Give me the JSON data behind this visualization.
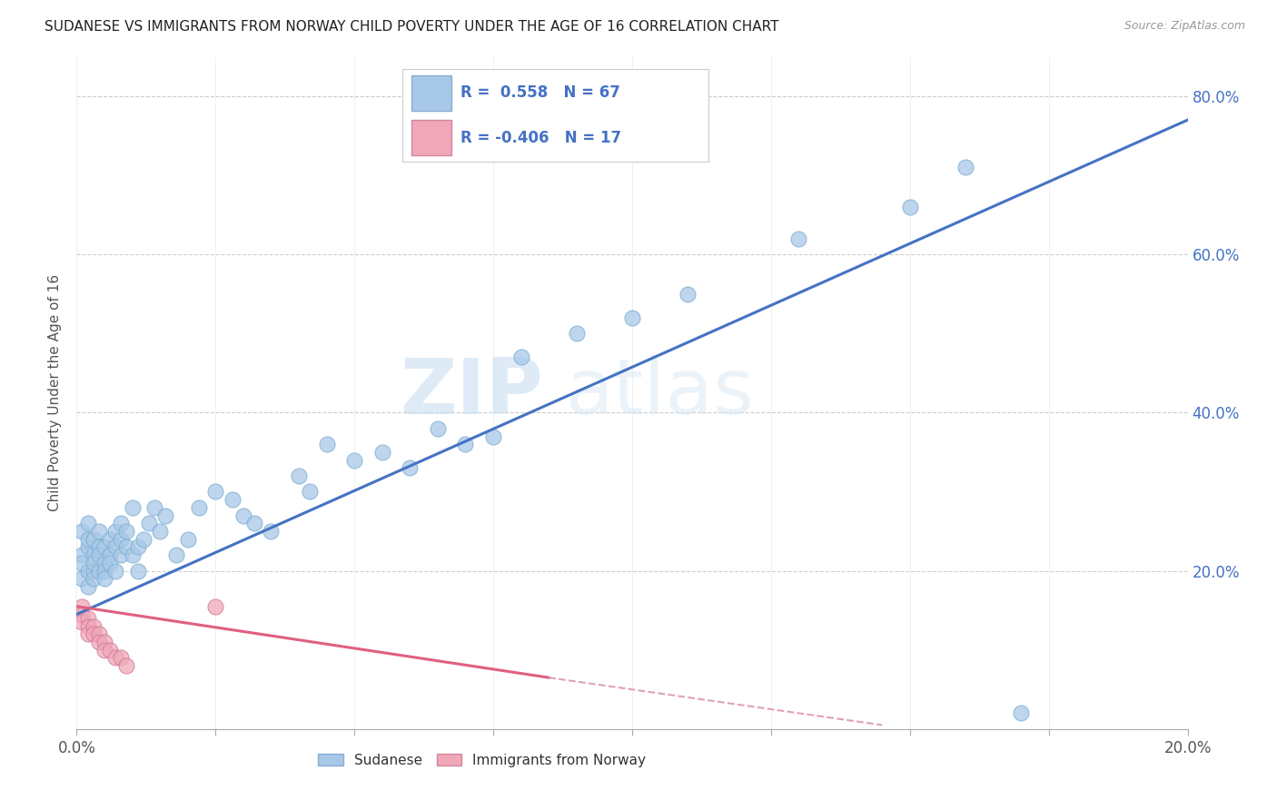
{
  "title": "SUDANESE VS IMMIGRANTS FROM NORWAY CHILD POVERTY UNDER THE AGE OF 16 CORRELATION CHART",
  "source": "Source: ZipAtlas.com",
  "ylabel": "Child Poverty Under the Age of 16",
  "xlim": [
    0.0,
    0.2
  ],
  "ylim": [
    0.0,
    0.85
  ],
  "ytick_vals": [
    0.0,
    0.2,
    0.4,
    0.6,
    0.8
  ],
  "ytick_labels": [
    "",
    "20.0%",
    "40.0%",
    "60.0%",
    "80.0%"
  ],
  "xtick_vals": [
    0.0,
    0.025,
    0.05,
    0.075,
    0.1,
    0.125,
    0.15,
    0.175,
    0.2
  ],
  "xtick_show": [
    0.0,
    0.2
  ],
  "watermark_line1": "ZIP",
  "watermark_line2": "atlas",
  "series1_color": "#a8c8e8",
  "series2_color": "#f0a8b8",
  "line1_color": "#4472c4",
  "line2_color": "#e06080",
  "line2_dashed_color": "#e0a0b8",
  "sudanese_x": [
    0.001,
    0.001,
    0.001,
    0.001,
    0.002,
    0.002,
    0.002,
    0.002,
    0.002,
    0.003,
    0.003,
    0.003,
    0.003,
    0.003,
    0.004,
    0.004,
    0.004,
    0.004,
    0.005,
    0.005,
    0.005,
    0.005,
    0.006,
    0.006,
    0.006,
    0.007,
    0.007,
    0.007,
    0.008,
    0.008,
    0.008,
    0.009,
    0.009,
    0.01,
    0.01,
    0.011,
    0.011,
    0.012,
    0.013,
    0.014,
    0.015,
    0.016,
    0.018,
    0.02,
    0.022,
    0.025,
    0.028,
    0.03,
    0.032,
    0.035,
    0.04,
    0.042,
    0.045,
    0.05,
    0.055,
    0.06,
    0.065,
    0.07,
    0.075,
    0.08,
    0.09,
    0.1,
    0.11,
    0.13,
    0.15,
    0.16,
    0.17
  ],
  "sudanese_y": [
    0.22,
    0.19,
    0.21,
    0.25,
    0.2,
    0.23,
    0.18,
    0.24,
    0.26,
    0.2,
    0.22,
    0.24,
    0.19,
    0.21,
    0.2,
    0.23,
    0.22,
    0.25,
    0.21,
    0.23,
    0.2,
    0.19,
    0.22,
    0.24,
    0.21,
    0.23,
    0.25,
    0.2,
    0.24,
    0.22,
    0.26,
    0.23,
    0.25,
    0.22,
    0.28,
    0.2,
    0.23,
    0.24,
    0.26,
    0.28,
    0.25,
    0.27,
    0.22,
    0.24,
    0.28,
    0.3,
    0.29,
    0.27,
    0.26,
    0.25,
    0.32,
    0.3,
    0.36,
    0.34,
    0.35,
    0.33,
    0.38,
    0.36,
    0.37,
    0.47,
    0.5,
    0.52,
    0.55,
    0.62,
    0.66,
    0.71,
    0.02
  ],
  "norway_x": [
    0.001,
    0.001,
    0.001,
    0.002,
    0.002,
    0.002,
    0.003,
    0.003,
    0.004,
    0.004,
    0.005,
    0.005,
    0.006,
    0.007,
    0.008,
    0.009,
    0.025
  ],
  "norway_y": [
    0.155,
    0.145,
    0.135,
    0.14,
    0.13,
    0.12,
    0.13,
    0.12,
    0.12,
    0.11,
    0.11,
    0.1,
    0.1,
    0.09,
    0.09,
    0.08,
    0.155
  ],
  "line1_x0": 0.0,
  "line1_y0": 0.145,
  "line1_x1": 0.2,
  "line1_y1": 0.77,
  "line2_x0": 0.0,
  "line2_y0": 0.155,
  "line2_solid_x1": 0.085,
  "line2_y1_at_solid_end": 0.065,
  "line2_dashed_x1": 0.145,
  "line2_y1_dashed_end": 0.005
}
